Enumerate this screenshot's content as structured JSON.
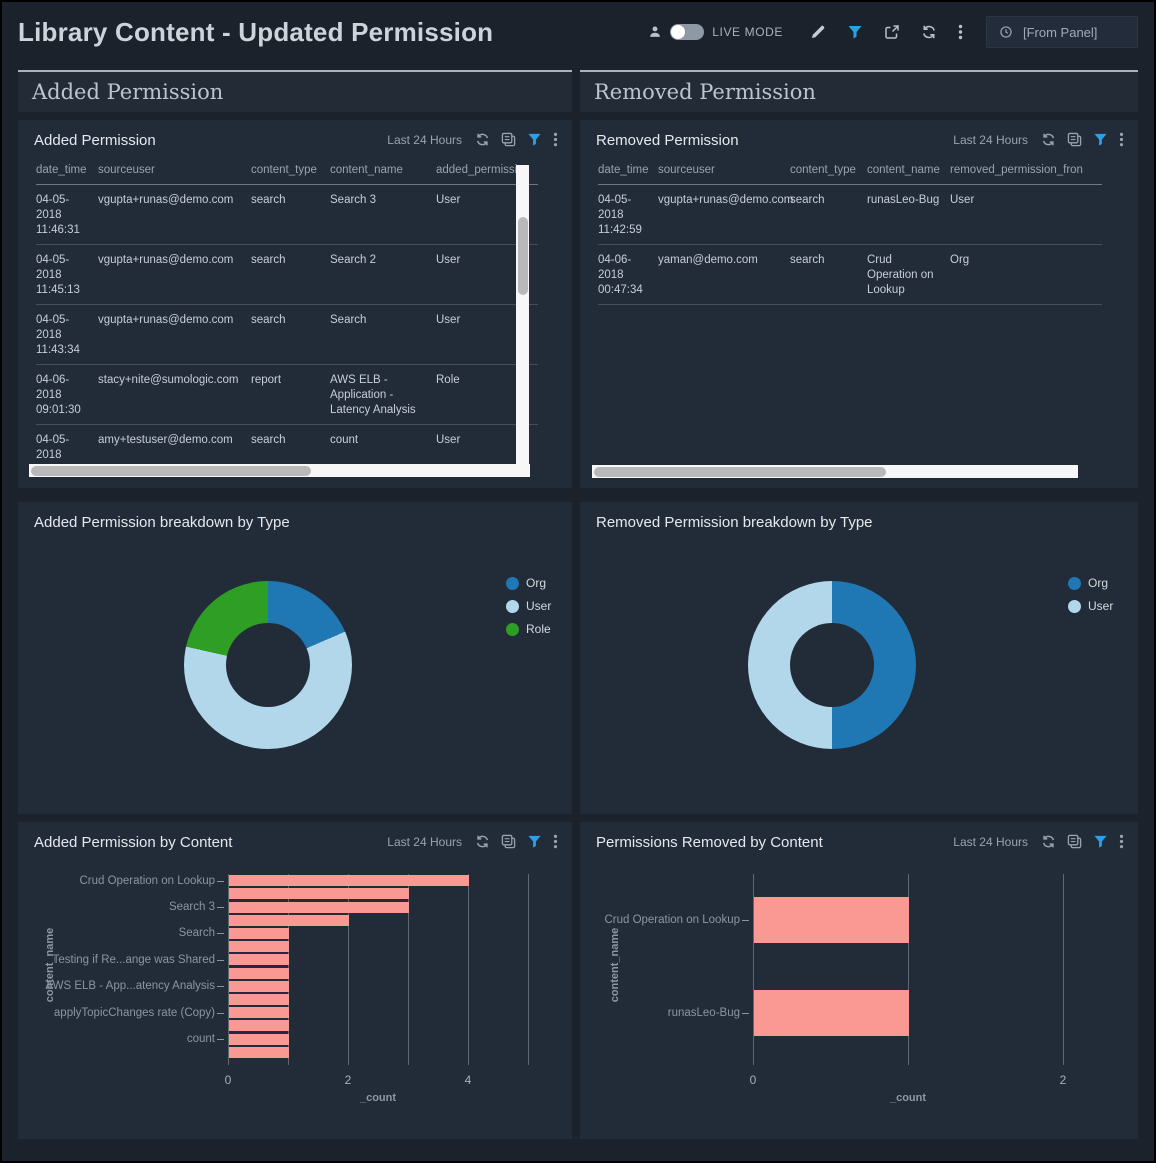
{
  "header": {
    "title": "Library Content - Updated Permission",
    "live_mode_label": "LIVE MODE",
    "time_range_value": "[From Panel]",
    "icons": [
      "user-icon",
      "live-mode-toggle",
      "edit-pencil-icon",
      "filter-icon",
      "share-icon",
      "refresh-icon",
      "kebab-menu-icon",
      "clock-icon"
    ]
  },
  "sections": [
    {
      "title": "Added Permission"
    },
    {
      "title": "Removed Permission"
    }
  ],
  "panel_icons": [
    "refresh-icon",
    "copy-icon",
    "filter-icon",
    "kebab-menu-icon"
  ],
  "tables": {
    "added": {
      "title": "Added Permission",
      "time_range": "Last 24 Hours",
      "columns": [
        "date_time",
        "sourceuser",
        "content_type",
        "content_name",
        "added_permissi"
      ],
      "rows": [
        {
          "date_time": "04-05-2018 11:46:31",
          "sourceuser": "vgupta+runas@demo.com",
          "content_type": "search",
          "content_name": "Search 3",
          "permission": "User"
        },
        {
          "date_time": "04-05-2018 11:45:13",
          "sourceuser": "vgupta+runas@demo.com",
          "content_type": "search",
          "content_name": "Search 2",
          "permission": "User"
        },
        {
          "date_time": "04-05-2018 11:43:34",
          "sourceuser": "vgupta+runas@demo.com",
          "content_type": "search",
          "content_name": "Search",
          "permission": "User"
        },
        {
          "date_time": "04-06-2018 09:01:30",
          "sourceuser": "stacy+nite@sumologic.com",
          "content_type": "report",
          "content_name": "AWS ELB - Application - Latency Analysis",
          "permission": "Role"
        },
        {
          "date_time": "04-05-2018",
          "sourceuser": "amy+testuser@demo.com",
          "content_type": "search",
          "content_name": "count",
          "permission": "User"
        }
      ]
    },
    "removed": {
      "title": "Removed Permission",
      "time_range": "Last 24 Hours",
      "columns": [
        "date_time",
        "sourceuser",
        "content_type",
        "content_name",
        "removed_permission_fron"
      ],
      "rows": [
        {
          "date_time": "04-05-2018 11:42:59",
          "sourceuser": "vgupta+runas@demo.com",
          "content_type": "search",
          "content_name": "runasLeo-Bug",
          "permission": "User"
        },
        {
          "date_time": "04-06-2018 00:47:34",
          "sourceuser": "yaman@demo.com",
          "content_type": "search",
          "content_name": "Crud Operation on Lookup",
          "permission": "Org"
        }
      ]
    }
  },
  "chart_data": [
    {
      "id": "added_breakdown",
      "type": "pie",
      "donut": true,
      "title": "Added Permission breakdown by Type",
      "labels": [
        "Org",
        "User",
        "Role"
      ],
      "values_pct": [
        18.5,
        60,
        21.5
      ],
      "colors": [
        "#1f78b4",
        "#b3d7ea",
        "#2f9e24"
      ],
      "legend_position": "right"
    },
    {
      "id": "removed_breakdown",
      "type": "pie",
      "donut": true,
      "title": "Removed Permission breakdown by Type",
      "labels": [
        "Org",
        "User"
      ],
      "values_pct": [
        50,
        50
      ],
      "colors": [
        "#1f78b4",
        "#b3d7ea"
      ],
      "legend_position": "right"
    },
    {
      "id": "added_by_content",
      "type": "bar",
      "orientation": "horizontal",
      "title": "Added Permission by Content",
      "time_range": "Last 24 Hours",
      "xlabel": "_count",
      "ylabel": "content_name",
      "xlim": [
        0,
        5
      ],
      "x_tick_labels": [
        0,
        2,
        4
      ],
      "gridline_every": 1,
      "bar_color": "#fa9994",
      "categories": [
        "Crud Operation on Lookup",
        "",
        "Search 3",
        "",
        "Search",
        "",
        "Testing if Re...ange was Shared",
        "",
        "AWS ELB - App...atency Analysis",
        "",
        "applyTopicChanges rate (Copy)",
        "",
        "count",
        ""
      ],
      "values": [
        4,
        3,
        3,
        2,
        1,
        1,
        1,
        1,
        1,
        1,
        1,
        1,
        1,
        1
      ]
    },
    {
      "id": "removed_by_content",
      "type": "bar",
      "orientation": "horizontal",
      "title": "Permissions Removed by Content",
      "time_range": "Last 24 Hours",
      "xlabel": "_count",
      "ylabel": "content_name",
      "xlim": [
        0,
        2
      ],
      "x_tick_labels": [
        0,
        2
      ],
      "gridline_every": 1,
      "bar_color": "#fa9994",
      "categories": [
        "Crud Operation on Lookup",
        "runasLeo-Bug"
      ],
      "values": [
        1,
        1
      ]
    }
  ]
}
